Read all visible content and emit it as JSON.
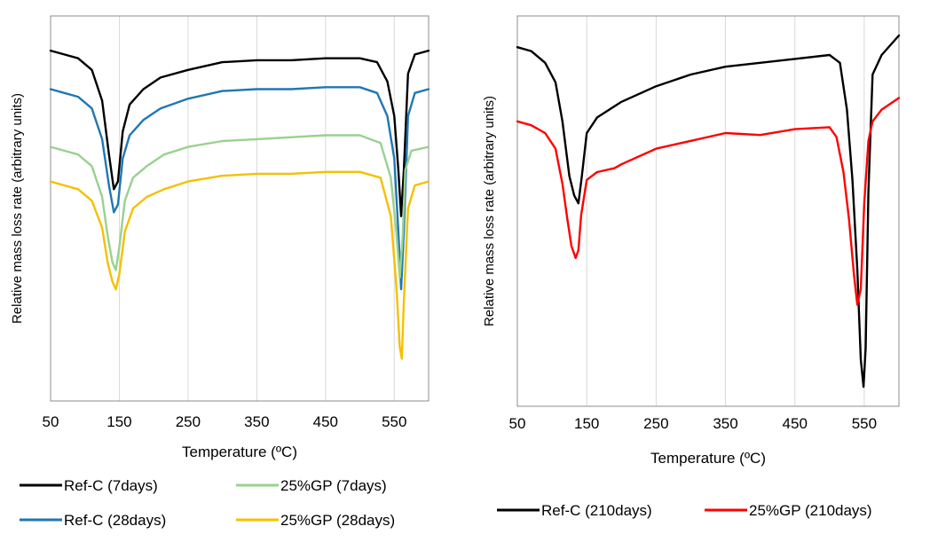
{
  "chart_data": [
    {
      "type": "line",
      "title": "",
      "xlabel": "Temperature (ºC)",
      "ylabel": "Relative mass loss rate (arbitrary units)",
      "xlim": [
        50,
        600
      ],
      "ylim": [
        0,
        100
      ],
      "xticks": [
        50,
        150,
        250,
        350,
        450,
        550
      ],
      "xtick_labels": [
        "50",
        "150",
        "250",
        "350",
        "450",
        "550"
      ],
      "y_tick_labels": false,
      "grid": "vertical",
      "legend_position": "bottom",
      "series": [
        {
          "name": "Ref-C (7days)",
          "color": "#000000",
          "x": [
            50,
            70,
            90,
            110,
            125,
            135,
            142,
            148,
            155,
            165,
            185,
            210,
            250,
            300,
            350,
            400,
            450,
            500,
            525,
            540,
            550,
            556,
            560,
            564,
            570,
            580,
            600
          ],
          "y": [
            91,
            90,
            89,
            86,
            78,
            64,
            55,
            57,
            70,
            77,
            81,
            84,
            86,
            88,
            88.5,
            88.5,
            89,
            89,
            88,
            83,
            74,
            60,
            48,
            60,
            85,
            90,
            91
          ]
        },
        {
          "name": "Ref-C (28days)",
          "color": "#1f77b4",
          "x": [
            50,
            70,
            90,
            110,
            125,
            135,
            142,
            148,
            155,
            165,
            185,
            210,
            250,
            300,
            350,
            400,
            450,
            500,
            525,
            540,
            550,
            556,
            560,
            564,
            570,
            580,
            600
          ],
          "y": [
            81,
            80,
            79,
            76,
            68,
            56,
            49,
            51,
            63,
            69,
            73,
            76,
            78.5,
            80.5,
            81,
            81,
            81.5,
            81.5,
            80,
            74,
            63,
            44,
            29,
            44,
            74,
            80,
            81
          ]
        },
        {
          "name": "25%GP (7days)",
          "color": "#99d18f",
          "x": [
            50,
            70,
            90,
            110,
            125,
            133,
            140,
            145,
            150,
            158,
            170,
            190,
            215,
            250,
            300,
            350,
            400,
            450,
            500,
            530,
            545,
            553,
            558,
            562,
            566,
            575,
            600
          ],
          "y": [
            66,
            65,
            64,
            61,
            53,
            43,
            36,
            34,
            40,
            52,
            58,
            61,
            64,
            66,
            67.5,
            68,
            68.5,
            69,
            69,
            67,
            58,
            44,
            32,
            42,
            60,
            65,
            66
          ]
        },
        {
          "name": "25%GP (28days)",
          "color": "#f5c000",
          "x": [
            50,
            70,
            90,
            110,
            125,
            133,
            140,
            145,
            150,
            158,
            170,
            190,
            215,
            250,
            300,
            350,
            400,
            450,
            500,
            530,
            545,
            553,
            558,
            561,
            564,
            570,
            580,
            600
          ],
          "y": [
            57,
            56,
            55,
            52,
            45,
            36,
            31,
            29,
            33,
            44,
            50,
            53,
            55,
            57,
            58.5,
            59,
            59,
            59.5,
            59.5,
            58,
            48,
            30,
            14,
            11,
            26,
            50,
            56,
            57
          ]
        }
      ]
    },
    {
      "type": "line",
      "title": "",
      "xlabel": "Temperature (ºC)",
      "ylabel": "Relative mass loss rate (arbitrary units)",
      "xlim": [
        50,
        600
      ],
      "ylim": [
        0,
        100
      ],
      "xticks": [
        50,
        150,
        250,
        350,
        450,
        550
      ],
      "xtick_labels": [
        "50",
        "150",
        "250",
        "350",
        "450",
        "550"
      ],
      "y_tick_labels": false,
      "grid": "vertical",
      "legend_position": "bottom",
      "series": [
        {
          "name": "Ref-C (210days)",
          "color": "#000000",
          "x": [
            50,
            70,
            90,
            105,
            115,
            125,
            132,
            138,
            143,
            150,
            165,
            200,
            250,
            300,
            350,
            400,
            450,
            500,
            515,
            525,
            533,
            540,
            545,
            549,
            552,
            556,
            562,
            575,
            600
          ],
          "y": [
            92,
            91,
            88,
            83,
            73,
            59,
            54,
            52,
            59,
            70,
            74,
            78,
            82,
            85,
            87,
            88,
            89,
            90,
            88,
            76,
            58,
            35,
            12,
            5,
            15,
            55,
            85,
            90,
            95
          ]
        },
        {
          "name": "25%GP (210days)",
          "color": "#ff0000",
          "x": [
            50,
            70,
            90,
            105,
            115,
            122,
            128,
            134,
            138,
            142,
            150,
            165,
            190,
            200,
            250,
            300,
            350,
            400,
            450,
            500,
            510,
            520,
            528,
            535,
            540,
            545,
            550,
            556,
            562,
            575,
            600
          ],
          "y": [
            73,
            72,
            70,
            66,
            57,
            48,
            41,
            38,
            40,
            49,
            58,
            60,
            61,
            62,
            66,
            68,
            70,
            69.5,
            71,
            71.5,
            69,
            60,
            48,
            34,
            26,
            30,
            52,
            68,
            73,
            76,
            79
          ]
        }
      ]
    }
  ]
}
